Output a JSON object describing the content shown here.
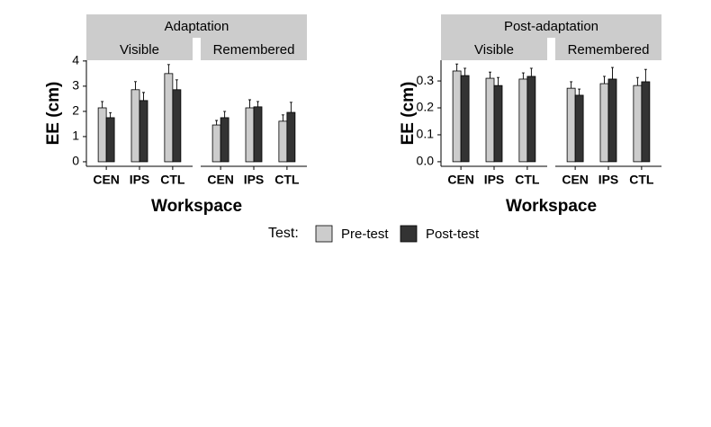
{
  "chart_data": [
    {
      "type": "bar",
      "title": "Adaptation",
      "y_label": "EE (cm)",
      "x_label": "Workspace",
      "ylim": [
        -0.18,
        4.03
      ],
      "yticks": [
        0,
        1,
        2,
        3,
        4
      ],
      "panels": [
        {
          "title": "Visible",
          "categories": [
            "CEN",
            "IPS",
            "CTL"
          ],
          "series": [
            {
              "name": "Pre-test",
              "color": "#cccccc",
              "values": [
                2.14,
                2.86,
                3.5
              ],
              "errors": [
                0.25,
                0.32,
                0.36
              ]
            },
            {
              "name": "Post-test",
              "color": "#333333",
              "values": [
                1.75,
                2.43,
                2.86
              ],
              "errors": [
                0.2,
                0.32,
                0.39
              ]
            }
          ]
        },
        {
          "title": "Remembered",
          "categories": [
            "CEN",
            "IPS",
            "CTL"
          ],
          "series": [
            {
              "name": "Pre-test",
              "color": "#cccccc",
              "values": [
                1.46,
                2.14,
                1.61
              ],
              "errors": [
                0.18,
                0.32,
                0.25
              ]
            },
            {
              "name": "Post-test",
              "color": "#333333",
              "values": [
                1.75,
                2.18,
                1.96
              ],
              "errors": [
                0.25,
                0.21,
                0.4
              ]
            }
          ]
        }
      ]
    },
    {
      "type": "bar",
      "title": "Post-adaptation",
      "y_label": "EE (cm)",
      "x_label": "Workspace",
      "ylim": [
        -0.017,
        0.377
      ],
      "yticks": [
        {
          "value": 0,
          "label": "0.0"
        },
        0.1,
        0.2,
        0.3
      ],
      "panels": [
        {
          "title": "Visible",
          "categories": [
            "CEN",
            "IPS",
            "CTL"
          ],
          "series": [
            {
              "name": "Pre-test",
              "color": "#cccccc",
              "values": [
                0.337,
                0.31,
                0.307
              ],
              "errors": [
                0.026,
                0.023,
                0.023
              ]
            },
            {
              "name": "Post-test",
              "color": "#333333",
              "values": [
                0.32,
                0.283,
                0.317
              ],
              "errors": [
                0.027,
                0.03,
                0.03
              ]
            }
          ]
        },
        {
          "title": "Remembered",
          "categories": [
            "CEN",
            "IPS",
            "CTL"
          ],
          "series": [
            {
              "name": "Pre-test",
              "color": "#cccccc",
              "values": [
                0.273,
                0.29,
                0.283
              ],
              "errors": [
                0.024,
                0.027,
                0.03
              ]
            },
            {
              "name": "Post-test",
              "color": "#333333",
              "values": [
                0.247,
                0.307,
                0.297
              ],
              "errors": [
                0.023,
                0.043,
                0.046
              ]
            }
          ]
        }
      ]
    }
  ],
  "legend_title": "Test:"
}
